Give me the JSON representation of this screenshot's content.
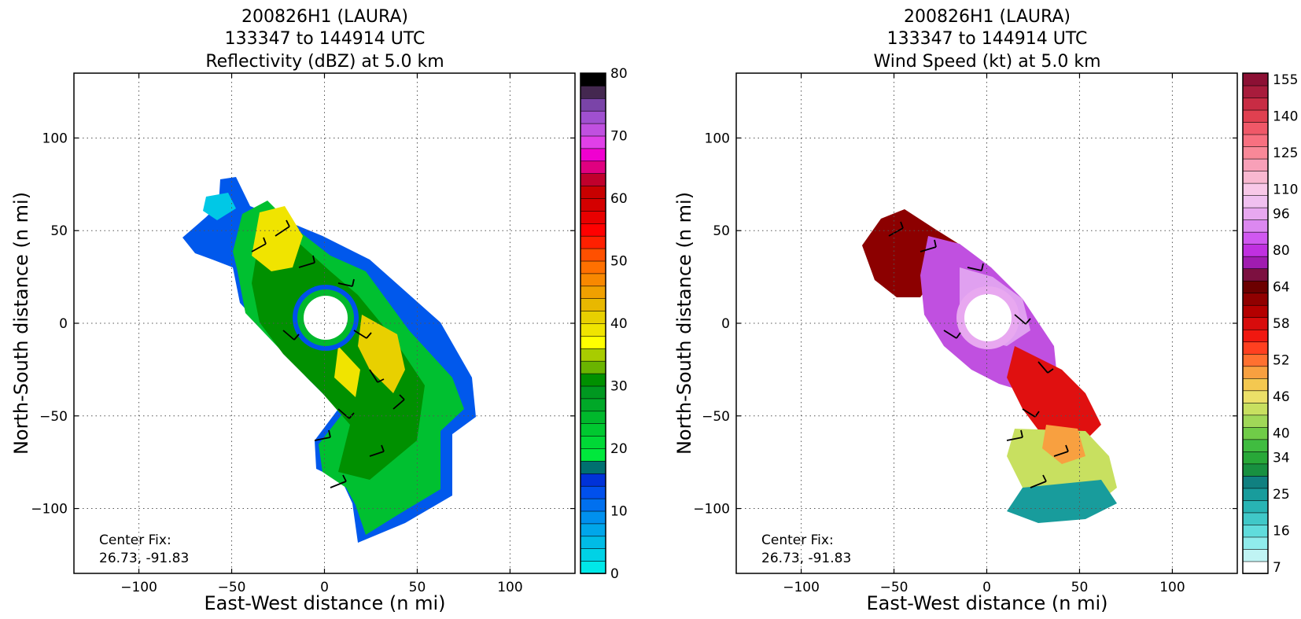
{
  "chart_data": [
    {
      "type": "heatmap",
      "title_lines": [
        "200826H1 (LAURA)",
        "133347 to 144914 UTC",
        "Reflectivity (dBZ) at 5.0 km"
      ],
      "xlabel": "East-West distance (n mi)",
      "ylabel": "North-South distance (n mi)",
      "xlim": [
        -135,
        135
      ],
      "ylim": [
        -135,
        135
      ],
      "xticks": [
        -100,
        -50,
        0,
        50,
        100
      ],
      "yticks": [
        -100,
        -50,
        0,
        50,
        100
      ],
      "x_tick_labels": [
        "−100",
        "−50",
        "0",
        "50",
        "100"
      ],
      "y_tick_labels": [
        "−100",
        "−50",
        "0",
        "50",
        "100"
      ],
      "grid": true,
      "colorbar": {
        "vmin": 0,
        "vmax": 80,
        "ticks": [
          0,
          10,
          20,
          30,
          40,
          50,
          60,
          70,
          80
        ],
        "tick_labels": [
          "0",
          "10",
          "20",
          "30",
          "40",
          "50",
          "60",
          "70",
          "80"
        ],
        "colors": [
          "#00e8e8",
          "#00d2e6",
          "#00bce6",
          "#00a6ea",
          "#0090ee",
          "#0070ef",
          "#0050ec",
          "#0032d8",
          "#007070",
          "#00e83c",
          "#00d836",
          "#00c830",
          "#00b82c",
          "#00a828",
          "#009820",
          "#009000",
          "#6ab400",
          "#a8cc00",
          "#ffff00",
          "#f0e400",
          "#e8d000",
          "#e8b800",
          "#f0a000",
          "#f88800",
          "#ff7000",
          "#ff5000",
          "#ff2000",
          "#ff0000",
          "#e80000",
          "#d40000",
          "#c80000",
          "#c0002c",
          "#e00080",
          "#f000d0",
          "#e040e8",
          "#c050e0",
          "#a050d0",
          "#7a44a8",
          "#442850",
          "#000000"
        ]
      },
      "annotation_lines": [
        "Center Fix:",
        "26.73, -91.83"
      ]
    },
    {
      "type": "heatmap",
      "title_lines": [
        "200826H1 (LAURA)",
        "133347 to 144914 UTC",
        "Wind Speed (kt) at 5.0 km"
      ],
      "xlabel": "East-West distance (n mi)",
      "ylabel": "North-South distance (n mi)",
      "xlim": [
        -135,
        135
      ],
      "ylim": [
        -135,
        135
      ],
      "xticks": [
        -100,
        -50,
        0,
        50,
        100
      ],
      "yticks": [
        -100,
        -50,
        0,
        50,
        100
      ],
      "x_tick_labels": [
        "−100",
        "−50",
        "0",
        "50",
        "100"
      ],
      "y_tick_labels": [
        "−100",
        "−50",
        "0",
        "50",
        "100"
      ],
      "grid": true,
      "colorbar": {
        "ticks": [
          7,
          16,
          25,
          34,
          40,
          46,
          52,
          58,
          64,
          80,
          96,
          110,
          125,
          140,
          155
        ],
        "tick_labels": [
          "7",
          "16",
          "25",
          "34",
          "40",
          "46",
          "52",
          "58",
          "64",
          "80",
          "96",
          "110",
          "125",
          "140",
          "155"
        ],
        "colors": [
          "#ffffff",
          "#c0f4f4",
          "#90ecec",
          "#60dcdc",
          "#40c8c8",
          "#28b4b4",
          "#189c9c",
          "#108080",
          "#189040",
          "#28a838",
          "#40bc40",
          "#70cc48",
          "#a0d858",
          "#c8e060",
          "#ece068",
          "#f4c850",
          "#f8a040",
          "#ff7030",
          "#ff4020",
          "#f01810",
          "#d80c0c",
          "#b40000",
          "#900000",
          "#6c0000",
          "#7c1040",
          "#a01cb0",
          "#c030e0",
          "#d058f0",
          "#dc88f0",
          "#e8a8f0",
          "#f0c0f0",
          "#f8c8e8",
          "#f8b8d0",
          "#f8a0b8",
          "#f88898",
          "#f87080",
          "#f05868",
          "#e04050",
          "#c82c44",
          "#a81c3c",
          "#8c1034"
        ]
      },
      "annotation_lines": [
        "Center Fix:",
        "26.73, -91.83"
      ]
    }
  ]
}
